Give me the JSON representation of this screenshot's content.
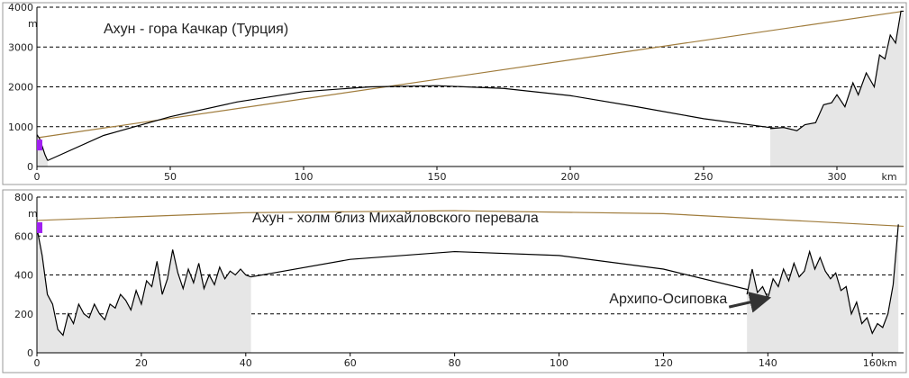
{
  "chart_data": [
    {
      "type": "line",
      "title": "Ахун - гора Качкар (Турция)",
      "y_unit": "m",
      "x_unit": "km",
      "xlim": [
        0,
        325
      ],
      "ylim": [
        0,
        4000
      ],
      "xticks": [
        0,
        50,
        100,
        150,
        200,
        250,
        300
      ],
      "yticks": [
        0,
        1000,
        2000,
        3000,
        4000
      ],
      "grid": true,
      "series": [
        {
          "color": "#a07c3c",
          "x": [
            0,
            325
          ],
          "values": [
            720,
            3900
          ]
        },
        {
          "color": "#000000",
          "x": [
            4,
            25,
            50,
            75,
            100,
            125,
            150,
            175,
            200,
            225,
            250,
            278
          ],
          "values": [
            150,
            780,
            1250,
            1620,
            1880,
            2000,
            2030,
            1960,
            1780,
            1500,
            1200,
            950
          ]
        },
        {
          "color": "#000000",
          "fill": "#e6e6e6",
          "x": [
            0,
            1,
            2,
            3,
            4,
            5,
            275,
            280,
            285,
            288,
            292,
            295,
            298,
            300,
            303,
            306,
            308,
            311,
            314,
            316,
            318,
            320,
            322,
            324,
            325
          ],
          "values": [
            800,
            700,
            500,
            300,
            150,
            null,
            950,
            980,
            900,
            1050,
            1100,
            1550,
            1600,
            1800,
            1500,
            2100,
            1800,
            2350,
            2000,
            2800,
            2700,
            3300,
            3100,
            3900,
            3900
          ]
        }
      ]
    },
    {
      "type": "line",
      "title": "Ахун - холм близ Михайловского перевала",
      "y_unit": "m",
      "x_unit": "km",
      "xlim": [
        0,
        166
      ],
      "ylim": [
        0,
        800
      ],
      "xticks": [
        0,
        20,
        40,
        60,
        80,
        100,
        120,
        140,
        160
      ],
      "yticks": [
        0,
        200,
        400,
        600,
        800
      ],
      "grid": true,
      "annotation": {
        "text": "Архипо-Осиповка",
        "x": 140.5,
        "y": 300
      },
      "series": [
        {
          "color": "#a07c3c",
          "x": [
            0,
            40,
            80,
            120,
            166
          ],
          "values": [
            680,
            720,
            730,
            715,
            650
          ]
        },
        {
          "color": "#000000",
          "x": [
            41,
            60,
            80,
            100,
            120,
            140
          ],
          "values": [
            390,
            480,
            520,
            500,
            430,
            300
          ]
        },
        {
          "color": "#000000",
          "fill": "#e6e6e6",
          "x": [
            0,
            1,
            2,
            3,
            4,
            5,
            6,
            7,
            8,
            9,
            10,
            11,
            12,
            13,
            14,
            15,
            16,
            17,
            18,
            19,
            20,
            21,
            22,
            23,
            24,
            25,
            26,
            27,
            28,
            29,
            30,
            31,
            32,
            33,
            34,
            35,
            36,
            37,
            38,
            39,
            40,
            41,
            42,
            136,
            137,
            138,
            139,
            140,
            141,
            142,
            143,
            144,
            145,
            146,
            147,
            148,
            149,
            150,
            151,
            152,
            153,
            154,
            155,
            156,
            157,
            158,
            159,
            160,
            161,
            162,
            163,
            164,
            165
          ],
          "values": [
            640,
            500,
            300,
            250,
            120,
            90,
            200,
            150,
            250,
            200,
            180,
            250,
            200,
            170,
            250,
            230,
            300,
            270,
            220,
            320,
            250,
            370,
            340,
            470,
            300,
            380,
            530,
            410,
            330,
            430,
            360,
            460,
            330,
            400,
            350,
            440,
            380,
            420,
            400,
            430,
            400,
            390,
            null,
            300,
            430,
            310,
            340,
            280,
            380,
            340,
            430,
            370,
            460,
            390,
            420,
            520,
            430,
            490,
            420,
            380,
            410,
            320,
            340,
            200,
            260,
            150,
            180,
            100,
            150,
            130,
            200,
            350,
            660
          ]
        }
      ]
    }
  ]
}
